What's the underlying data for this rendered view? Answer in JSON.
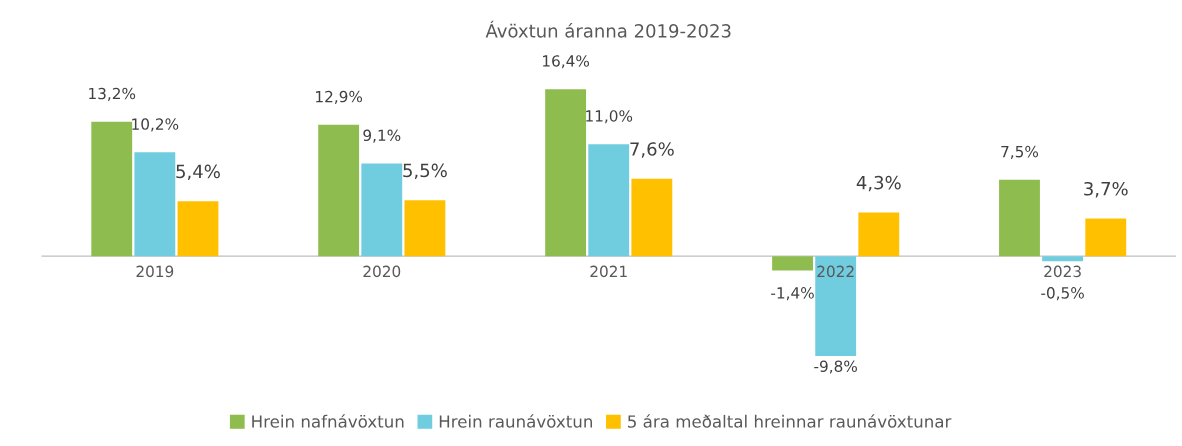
{
  "chart_data": {
    "type": "bar",
    "title": "Ávöxtun áranna 2019-2023",
    "categories": [
      "2019",
      "2020",
      "2021",
      "2022",
      "2023"
    ],
    "series": [
      {
        "name": "Hrein nafnávöxtun",
        "color": "#8fbc4f",
        "values": [
          13.2,
          12.9,
          16.4,
          -1.4,
          7.5
        ],
        "value_labels": [
          "13,2%",
          "12,9%",
          "16,4%",
          "-1,4%",
          "7,5%"
        ]
      },
      {
        "name": "Hrein raunávöxtun",
        "color": "#70cddf",
        "values": [
          10.2,
          9.1,
          11.0,
          -9.8,
          -0.5
        ],
        "value_labels": [
          "10,2%",
          "9,1%",
          "11,0%",
          "-9,8%",
          "-0,5%"
        ]
      },
      {
        "name": "5 ára meðaltal hreinnar raunávöxtunar",
        "color": "#ffc000",
        "values": [
          5.4,
          5.5,
          7.6,
          4.3,
          3.7
        ],
        "value_labels": [
          "5,4%",
          "5,5%",
          "7,6%",
          "4,3%",
          "3,7%"
        ]
      }
    ],
    "legend": "bottom"
  }
}
